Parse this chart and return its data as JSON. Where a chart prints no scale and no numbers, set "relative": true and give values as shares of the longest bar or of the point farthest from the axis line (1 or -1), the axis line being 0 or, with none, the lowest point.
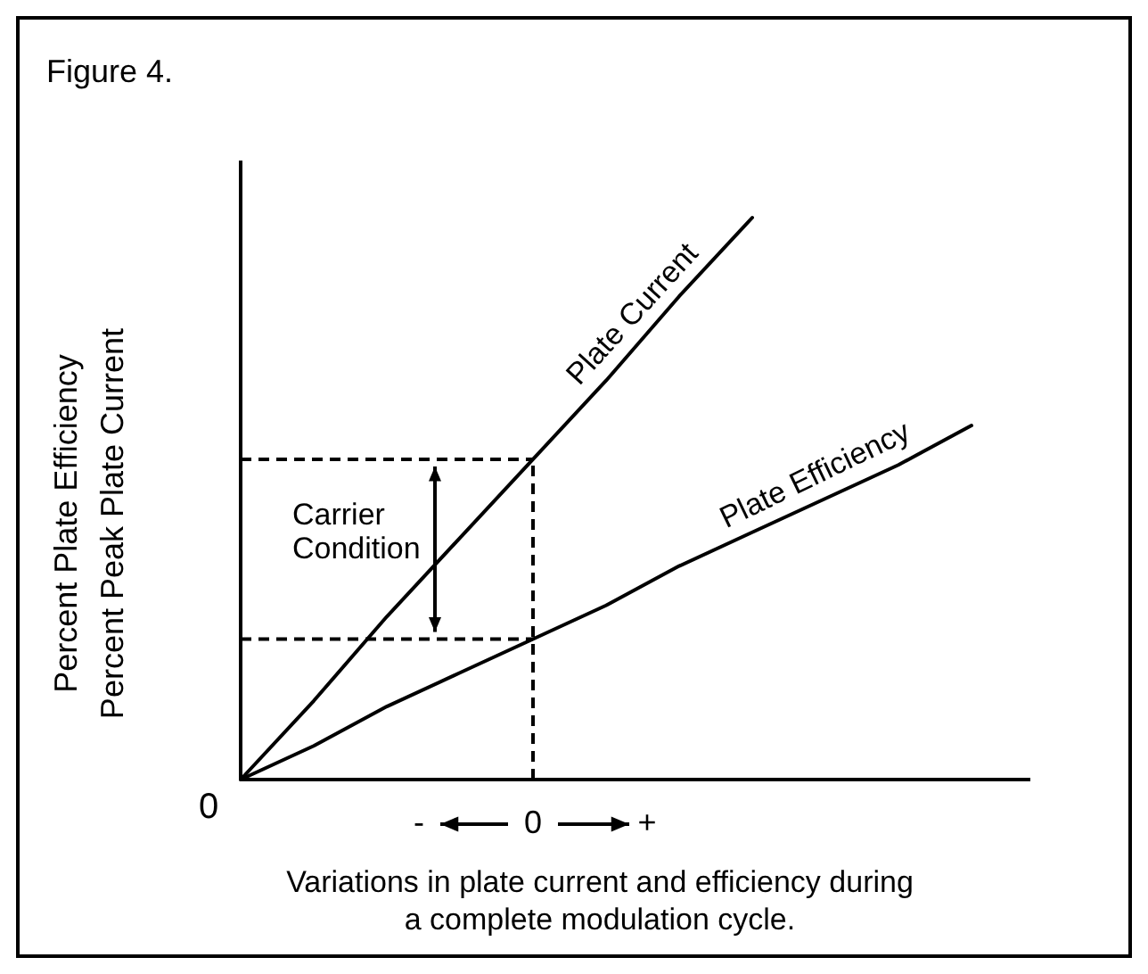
{
  "chart_data": {
    "type": "line",
    "title": "Figure 4.",
    "xlabel": "Variations in plate current and efficiency during\na complete modulation cycle.",
    "ylabel": "Percent Plate Efficiency\nPercent Peak Plate Current",
    "relative": true,
    "categories": [
      null,
      null,
      null,
      null,
      null,
      null,
      null,
      null,
      null,
      null,
      null
    ],
    "series": [
      {
        "name": "Plate Current",
        "color": "#000000",
        "values": [
          0,
          0.14,
          0.29,
          0.43,
          0.57,
          0.71,
          0.86,
          1,
          null,
          null,
          null
        ]
      },
      {
        "name": "Plate Efficiency",
        "color": "#000000",
        "values": [
          0,
          0.06,
          0.13,
          0.19,
          0.25,
          0.31,
          0.38,
          0.44,
          0.5,
          0.56,
          0.63
        ]
      }
    ],
    "ref_lines": [
      {
        "axis": "y",
        "value": 0.57,
        "line_style": "dashed"
      },
      {
        "axis": "y",
        "value": 0.25,
        "line_style": "dashed"
      }
    ],
    "annotations": [
      "0",
      "Carrier Condition",
      "-",
      "0",
      "+"
    ],
    "grid": false,
    "marker": "none",
    "line_style": "solid"
  }
}
